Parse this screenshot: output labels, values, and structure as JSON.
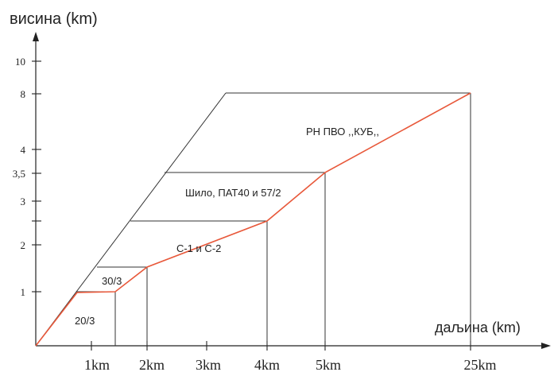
{
  "y_axis_label": "висина (km)",
  "x_axis_label": "даљина (km)",
  "y_ticks": [
    "10",
    "8",
    "4",
    "3,5",
    "3",
    "2",
    "1"
  ],
  "x_ticks": [
    "1km",
    "2km",
    "3km",
    "4km",
    "5km",
    "25km"
  ],
  "zone_labels": {
    "z1": "20/3",
    "z2": "30/3",
    "z3": "С-1 и С-2",
    "z4": "Шило, ПАТ40 и 57/2",
    "z5": "РН ПВО ,,КУБ,,"
  },
  "colors": {
    "axis": "#222222",
    "zone_boundary": "#e8583a"
  }
}
